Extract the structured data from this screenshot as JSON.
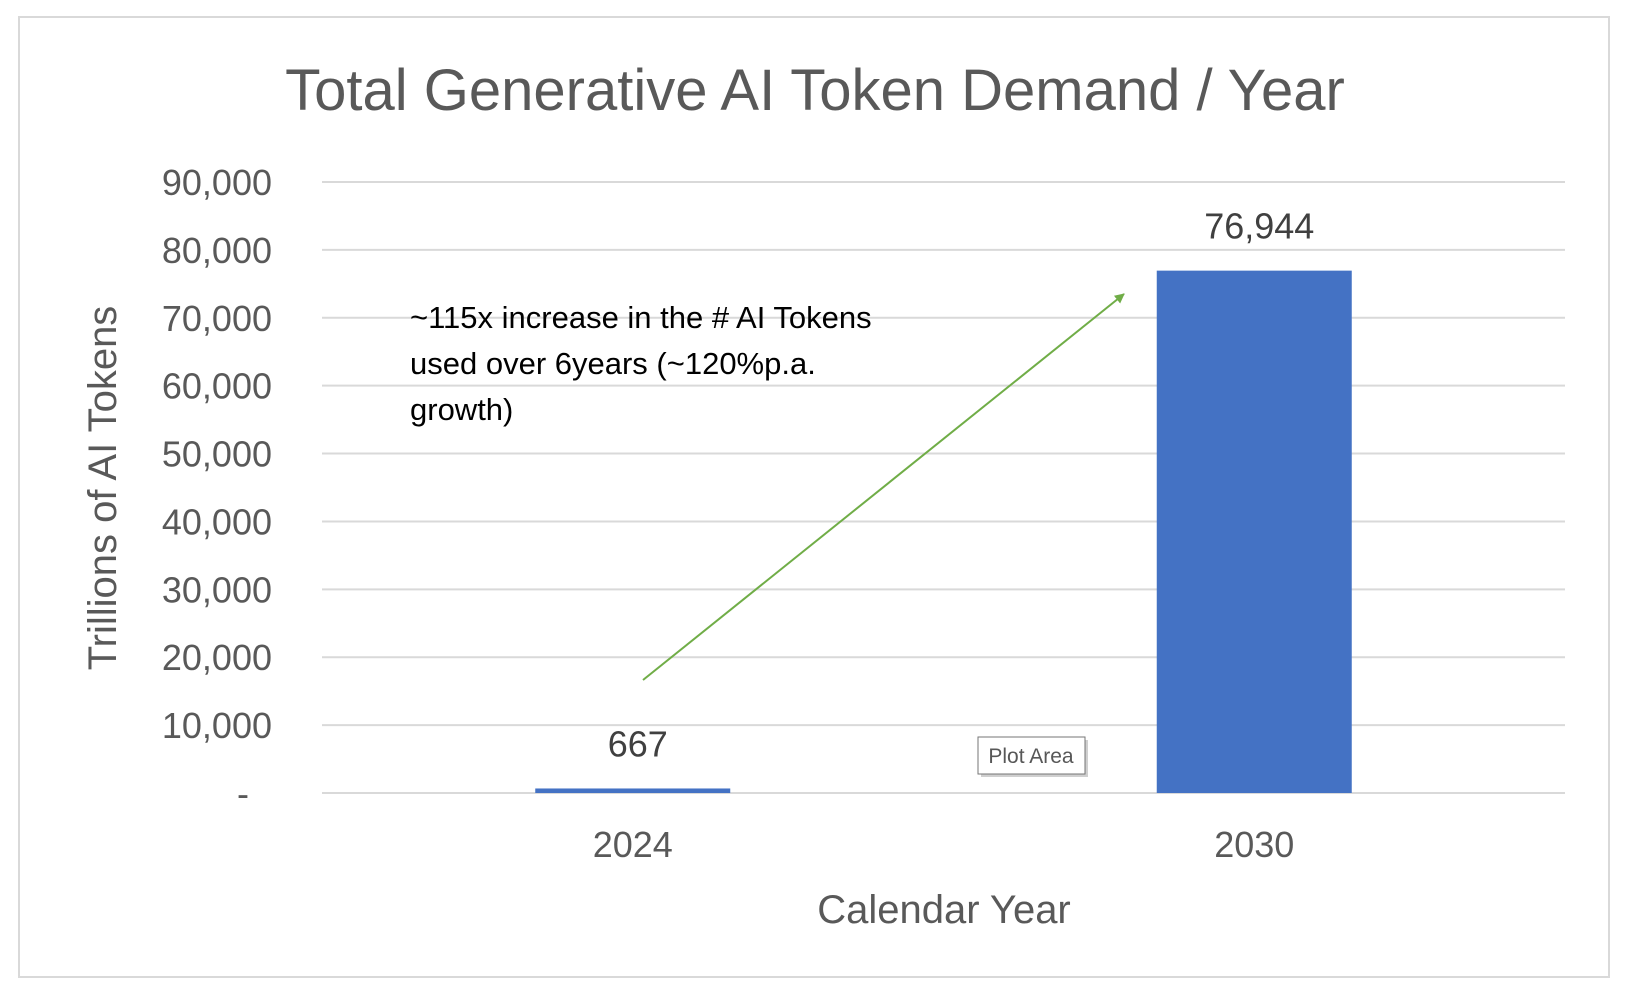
{
  "chart_data": {
    "type": "bar",
    "title": "Total Generative AI Token Demand / Year",
    "xlabel": "Calendar Year",
    "ylabel": "Trillions of AI Tokens",
    "categories": [
      "2024",
      "2030"
    ],
    "values": [
      667,
      76944
    ],
    "data_labels": [
      "667",
      "76,944"
    ],
    "ylim": [
      0,
      90000
    ],
    "yticks": [
      0,
      10000,
      20000,
      30000,
      40000,
      50000,
      60000,
      70000,
      80000,
      90000
    ],
    "ytick_labels": [
      "-",
      "10,000",
      "20,000",
      "30,000",
      "40,000",
      "50,000",
      "60,000",
      "70,000",
      "80,000",
      "90,000"
    ],
    "grid": true,
    "legend": "none",
    "bar_color": "#4472C4",
    "annotation": {
      "lines": [
        "~115x increase in the # AI Tokens",
        "used over 6years (~120%p.a.",
        "growth)"
      ],
      "arrow_color": "#70AD47"
    }
  },
  "ui": {
    "plot_area_tooltip": "Plot Area"
  }
}
